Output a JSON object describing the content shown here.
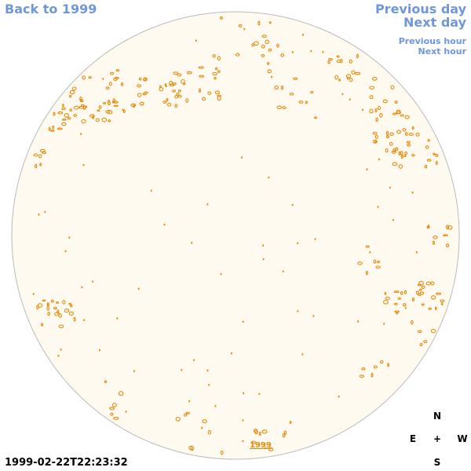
{
  "nav": {
    "back_label": "Back to 1999",
    "prev_day_label": "Previous day",
    "next_day_label": "Next day",
    "prev_hour_label": "Previous hour",
    "next_hour_label": "Next hour"
  },
  "timestamp": "1999-02-22T22:23:32",
  "year_label": "1999",
  "compass": {
    "north": "N",
    "east": "E",
    "center": "+",
    "west": "W",
    "south": "S"
  },
  "colors": {
    "disk_fill": "#fffaf0",
    "disk_stroke": "#bbbbbb",
    "feature": "#e8890a",
    "link": "#6f97d9"
  }
}
